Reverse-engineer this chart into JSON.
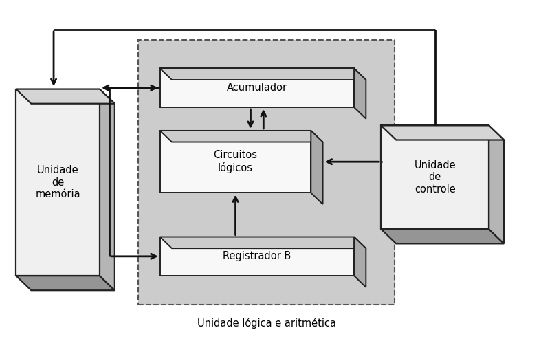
{
  "fig_width": 7.87,
  "fig_height": 4.93,
  "bg_color": "#ffffff",
  "alu_bg": "#cccccc",
  "box_face_light": "#f2f2f2",
  "box_face_white": "#ffffff",
  "box_top": "#d0d0d0",
  "box_right": "#aaaaaa",
  "box_bottom": "#999999",
  "box_edge": "#222222",
  "text_color": "#000000",
  "arrow_color": "#111111",
  "label_bottom": "Unidade lógica e aritmética",
  "mem_label": "Unidade\nde\nmemória",
  "ctrl_label": "Unidade\nde\ncontrole",
  "acum_label": "Acumulador",
  "circ_label": "Circuitos\nlógicos",
  "reg_label": "Registrador B",
  "xlim": [
    0,
    10
  ],
  "ylim": [
    0,
    6.5
  ]
}
